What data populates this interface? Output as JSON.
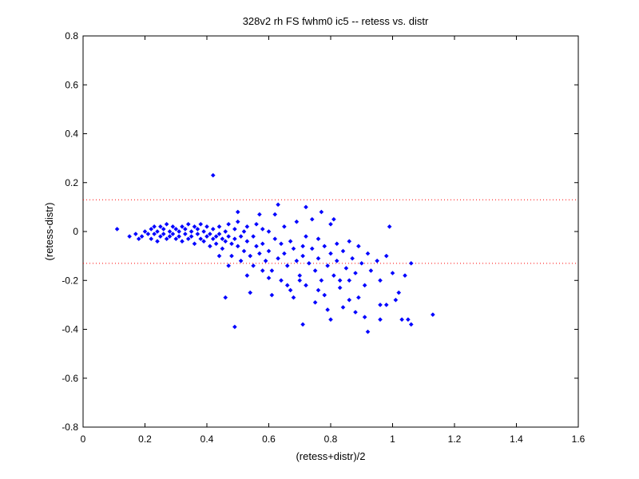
{
  "chart_data": {
    "type": "scatter",
    "title": "328v2 rh FS fwhm0 ic5 -- retess vs. distr",
    "xlabel": "(retess+distr)/2",
    "ylabel": "(retess-distr)",
    "xlim": [
      0,
      1.6
    ],
    "ylim": [
      -0.8,
      0.8
    ],
    "xticks": [
      "0",
      "0.2",
      "0.4",
      "0.6",
      "0.8",
      "1",
      "1.2",
      "1.4",
      "1.6"
    ],
    "yticks": [
      "0.8",
      "0.6",
      "0.4",
      "0.2",
      "0",
      "-0.2",
      "-0.4",
      "-0.6",
      "-0.8"
    ],
    "grid": false,
    "reference_lines": [
      {
        "y": 0.13,
        "style": "dotted",
        "color": "#ff0000"
      },
      {
        "y": -0.13,
        "style": "dotted",
        "color": "#ff0000"
      }
    ],
    "series": [
      {
        "marker": "diamond",
        "color": "#0000ff",
        "points": [
          [
            0.11,
            0.01
          ],
          [
            0.15,
            -0.02
          ],
          [
            0.17,
            -0.01
          ],
          [
            0.18,
            -0.03
          ],
          [
            0.19,
            -0.02
          ],
          [
            0.2,
            0.0
          ],
          [
            0.21,
            -0.01
          ],
          [
            0.22,
            0.01
          ],
          [
            0.22,
            -0.03
          ],
          [
            0.23,
            0.02
          ],
          [
            0.23,
            -0.01
          ],
          [
            0.24,
            0.0
          ],
          [
            0.24,
            -0.04
          ],
          [
            0.25,
            0.02
          ],
          [
            0.25,
            -0.02
          ],
          [
            0.26,
            0.01
          ],
          [
            0.26,
            -0.01
          ],
          [
            0.27,
            0.03
          ],
          [
            0.27,
            -0.03
          ],
          [
            0.28,
            0.0
          ],
          [
            0.28,
            -0.02
          ],
          [
            0.29,
            0.02
          ],
          [
            0.29,
            -0.01
          ],
          [
            0.3,
            0.01
          ],
          [
            0.3,
            -0.03
          ],
          [
            0.31,
            0.0
          ],
          [
            0.31,
            -0.02
          ],
          [
            0.32,
            0.02
          ],
          [
            0.32,
            -0.04
          ],
          [
            0.33,
            0.01
          ],
          [
            0.33,
            -0.01
          ],
          [
            0.34,
            0.03
          ],
          [
            0.34,
            -0.03
          ],
          [
            0.35,
            0.0
          ],
          [
            0.35,
            -0.02
          ],
          [
            0.36,
            0.02
          ],
          [
            0.36,
            -0.05
          ],
          [
            0.37,
            0.01
          ],
          [
            0.37,
            -0.01
          ],
          [
            0.38,
            0.03
          ],
          [
            0.38,
            -0.03
          ],
          [
            0.39,
            0.0
          ],
          [
            0.39,
            -0.04
          ],
          [
            0.4,
            0.02
          ],
          [
            0.4,
            -0.02
          ],
          [
            0.41,
            -0.01
          ],
          [
            0.41,
            -0.06
          ],
          [
            0.42,
            0.01
          ],
          [
            0.42,
            -0.03
          ],
          [
            0.43,
            -0.02
          ],
          [
            0.43,
            -0.05
          ],
          [
            0.44,
            0.02
          ],
          [
            0.44,
            -0.01
          ],
          [
            0.45,
            -0.03
          ],
          [
            0.45,
            -0.07
          ],
          [
            0.46,
            0.0
          ],
          [
            0.46,
            -0.04
          ],
          [
            0.47,
            0.03
          ],
          [
            0.47,
            -0.02
          ],
          [
            0.48,
            -0.05
          ],
          [
            0.48,
            -0.1
          ],
          [
            0.49,
            0.01
          ],
          [
            0.49,
            -0.03
          ],
          [
            0.5,
            0.04
          ],
          [
            0.5,
            -0.06
          ],
          [
            0.51,
            -0.02
          ],
          [
            0.51,
            -0.12
          ],
          [
            0.52,
            0.0
          ],
          [
            0.52,
            -0.08
          ],
          [
            0.53,
            0.02
          ],
          [
            0.53,
            -0.04
          ],
          [
            0.54,
            -0.1
          ],
          [
            0.55,
            -0.02
          ],
          [
            0.55,
            -0.14
          ],
          [
            0.56,
            0.03
          ],
          [
            0.56,
            -0.06
          ],
          [
            0.57,
            -0.09
          ],
          [
            0.58,
            0.01
          ],
          [
            0.58,
            -0.05
          ],
          [
            0.59,
            -0.12
          ],
          [
            0.6,
            0.0
          ],
          [
            0.6,
            -0.08
          ],
          [
            0.61,
            -0.16
          ],
          [
            0.62,
            -0.03
          ],
          [
            0.62,
            0.07
          ],
          [
            0.63,
            -0.11
          ],
          [
            0.64,
            -0.05
          ],
          [
            0.64,
            -0.2
          ],
          [
            0.65,
            0.02
          ],
          [
            0.65,
            -0.09
          ],
          [
            0.66,
            -0.14
          ],
          [
            0.67,
            -0.04
          ],
          [
            0.67,
            -0.24
          ],
          [
            0.68,
            -0.07
          ],
          [
            0.69,
            -0.12
          ],
          [
            0.69,
            0.04
          ],
          [
            0.7,
            -0.18
          ],
          [
            0.71,
            -0.06
          ],
          [
            0.71,
            -0.1
          ],
          [
            0.72,
            -0.02
          ],
          [
            0.72,
            -0.22
          ],
          [
            0.73,
            -0.13
          ],
          [
            0.74,
            -0.07
          ],
          [
            0.74,
            0.05
          ],
          [
            0.75,
            -0.16
          ],
          [
            0.76,
            -0.03
          ],
          [
            0.76,
            -0.11
          ],
          [
            0.77,
            -0.2
          ],
          [
            0.78,
            -0.06
          ],
          [
            0.78,
            -0.26
          ],
          [
            0.79,
            -0.14
          ],
          [
            0.8,
            -0.09
          ],
          [
            0.8,
            0.03
          ],
          [
            0.81,
            -0.18
          ],
          [
            0.82,
            -0.05
          ],
          [
            0.82,
            -0.12
          ],
          [
            0.83,
            -0.23
          ],
          [
            0.84,
            -0.08
          ],
          [
            0.85,
            -0.15
          ],
          [
            0.86,
            -0.04
          ],
          [
            0.86,
            -0.2
          ],
          [
            0.87,
            -0.11
          ],
          [
            0.88,
            -0.17
          ],
          [
            0.89,
            -0.06
          ],
          [
            0.9,
            -0.13
          ],
          [
            0.91,
            -0.22
          ],
          [
            0.92,
            -0.09
          ],
          [
            0.93,
            -0.16
          ],
          [
            0.95,
            -0.12
          ],
          [
            0.96,
            -0.2
          ],
          [
            0.98,
            -0.1
          ],
          [
            1.0,
            -0.17
          ],
          [
            1.02,
            -0.25
          ],
          [
            1.04,
            -0.18
          ],
          [
            1.06,
            -0.13
          ],
          [
            0.42,
            0.23
          ],
          [
            0.63,
            0.11
          ],
          [
            0.72,
            0.1
          ],
          [
            0.77,
            0.08
          ],
          [
            0.81,
            0.05
          ],
          [
            0.57,
            0.07
          ],
          [
            0.5,
            0.08
          ],
          [
            0.99,
            0.02
          ],
          [
            0.46,
            -0.27
          ],
          [
            0.49,
            -0.39
          ],
          [
            0.54,
            -0.25
          ],
          [
            0.61,
            -0.26
          ],
          [
            0.68,
            -0.27
          ],
          [
            0.71,
            -0.38
          ],
          [
            0.75,
            -0.29
          ],
          [
            0.79,
            -0.32
          ],
          [
            0.8,
            -0.36
          ],
          [
            0.84,
            -0.31
          ],
          [
            0.88,
            -0.33
          ],
          [
            0.91,
            -0.35
          ],
          [
            0.92,
            -0.41
          ],
          [
            0.96,
            -0.36
          ],
          [
            0.98,
            -0.3
          ],
          [
            1.01,
            -0.28
          ],
          [
            1.03,
            -0.36
          ],
          [
            1.05,
            -0.36
          ],
          [
            1.06,
            -0.38
          ],
          [
            1.13,
            -0.34
          ],
          [
            0.96,
            -0.3
          ],
          [
            0.89,
            -0.27
          ],
          [
            0.86,
            -0.28
          ],
          [
            0.83,
            -0.2
          ],
          [
            0.76,
            -0.24
          ],
          [
            0.7,
            -0.2
          ],
          [
            0.66,
            -0.22
          ],
          [
            0.6,
            -0.19
          ],
          [
            0.58,
            -0.16
          ],
          [
            0.53,
            -0.18
          ],
          [
            0.47,
            -0.14
          ],
          [
            0.44,
            -0.1
          ]
        ]
      }
    ]
  }
}
